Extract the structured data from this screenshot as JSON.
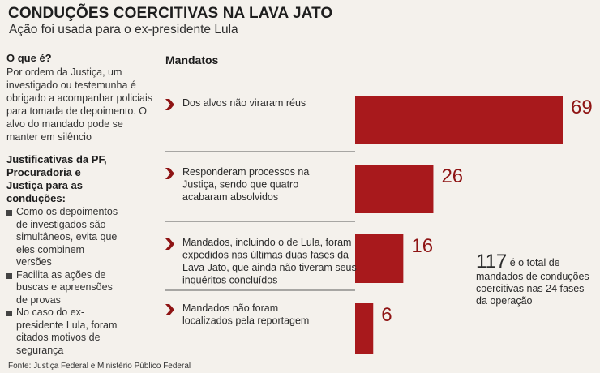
{
  "header": {
    "title": "CONDUÇÕES COERCITIVAS NA LAVA JATO",
    "subtitle": "Ação foi usada para o ex-presidente Lula"
  },
  "sidebar": {
    "what_heading": "O que é?",
    "what_text": "Por ordem da Justiça, um investigado ou testemunha é obrigado a acompanhar policiais para tomada de depoimento. O alvo do mandado pode se manter em silêncio",
    "justifications_heading": "Justificativas da PF, Procuradoria e Justiça para as conduções:",
    "bullets": [
      "Como os depoimentos de investigados são simultâneos, evita que eles combinem versões",
      "Facilita as ações de buscas e apreensões de provas",
      "No caso do ex-presidente Lula, foram citados motivos de segurança"
    ]
  },
  "source": "Fonte: Justiça Federal e Ministério Público Federal",
  "total": {
    "number": "117",
    "text": "é o total de mandados de conduções coercitivas nas 24 fases da operação"
  },
  "colors": {
    "bar": "#a8191c",
    "arrow": "#8e1414",
    "value": "#8e1414"
  },
  "chart_data": {
    "type": "bar",
    "orientation": "horizontal",
    "title": "Mandatos",
    "categories": [
      [
        "Dos alvos não viraram réus"
      ],
      [
        "Responderam processos na",
        "Justiça, sendo que quatro",
        "acabaram absolvidos"
      ],
      [
        "Mandados, incluindo o de Lula, foram",
        "expedidos nas últimas duas fases da",
        "Lava Jato, que ainda não tiveram seus",
        "inquéritos concluídos"
      ],
      [
        "Mandados não foram",
        "localizados pela reportagem"
      ]
    ],
    "values": [
      69,
      26,
      16,
      6
    ],
    "value_labels": [
      "69",
      "26",
      "16",
      "6"
    ],
    "xlim": [
      0,
      69
    ]
  }
}
